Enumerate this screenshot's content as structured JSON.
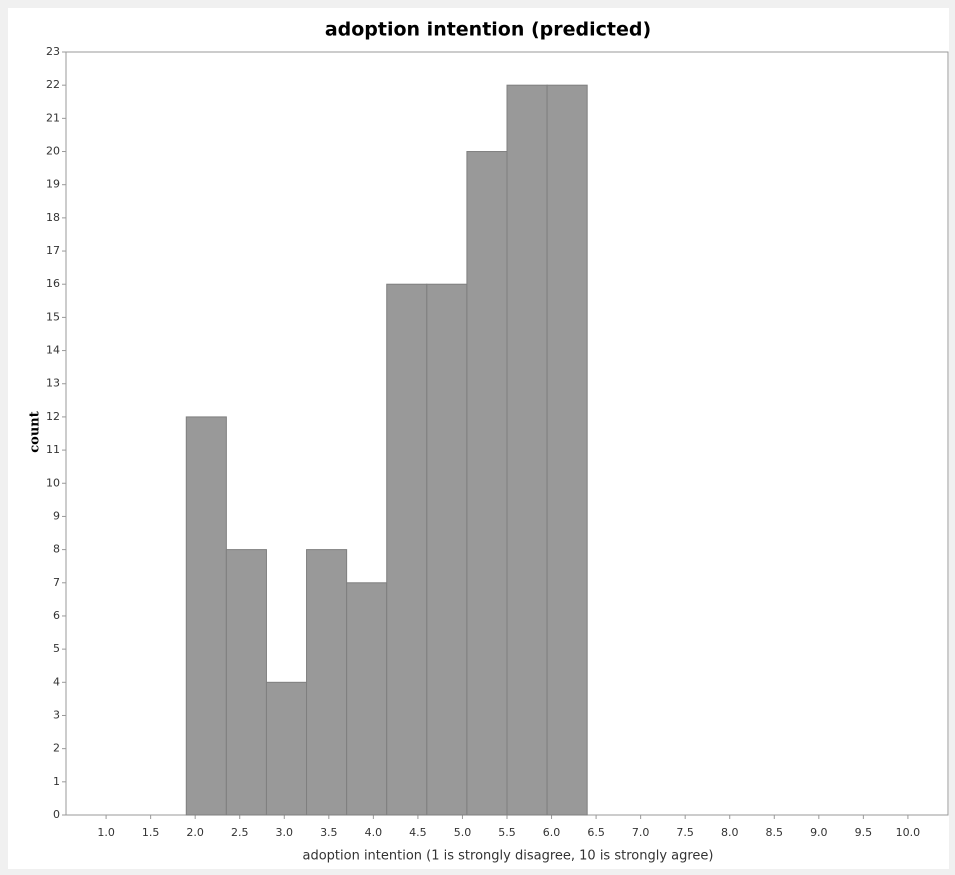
{
  "chart_data": {
    "type": "histogram",
    "title": "adoption intention (predicted)",
    "x_label": "adoption intention (1 is strongly disagree, 10 is strongly agree)",
    "y_label": "count",
    "bins": [
      1.9,
      2.35,
      2.8,
      3.25,
      3.7,
      4.15,
      4.6,
      5.05,
      5.5,
      5.95,
      6.4
    ],
    "values": [
      12,
      8,
      4,
      8,
      7,
      16,
      16,
      20,
      22,
      22
    ],
    "color": "#999999",
    "xlim": [
      0.55,
      10.45
    ],
    "xticks": [
      {
        "value": 1,
        "label": "1.0"
      },
      {
        "value": 1.5,
        "label": "1.5"
      },
      {
        "value": 2,
        "label": "2.0"
      },
      {
        "value": 2.5,
        "label": "2.5"
      },
      {
        "value": 3,
        "label": "3.0"
      },
      {
        "value": 3.5,
        "label": "3.5"
      },
      {
        "value": 4,
        "label": "4.0"
      },
      {
        "value": 4.5,
        "label": "4.5"
      },
      {
        "value": 5,
        "label": "5.0"
      },
      {
        "value": 5.5,
        "label": "5.5"
      },
      {
        "value": 6,
        "label": "6.0"
      },
      {
        "value": 6.5,
        "label": "6.5"
      },
      {
        "value": 7,
        "label": "7.0"
      },
      {
        "value": 7.5,
        "label": "7.5"
      },
      {
        "value": 8,
        "label": "8.0"
      },
      {
        "value": 8.5,
        "label": "8.5"
      },
      {
        "value": 9,
        "label": "9.0"
      },
      {
        "value": 9.5,
        "label": "9.5"
      },
      {
        "value": 10,
        "label": "10.0"
      }
    ],
    "ylim": [
      0,
      23
    ],
    "yticks": [
      0,
      1,
      2,
      3,
      4,
      5,
      6,
      7,
      8,
      9,
      10,
      11,
      12,
      13,
      14,
      15,
      16,
      17,
      18,
      19,
      20,
      21,
      22,
      23
    ],
    "grid": false
  }
}
